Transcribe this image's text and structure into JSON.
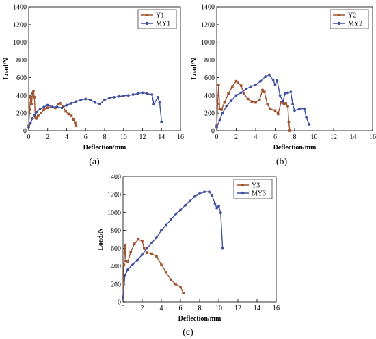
{
  "chart_data": [
    {
      "type": "line",
      "panel_label": "(a)",
      "xlabel": "Deflection/mm",
      "ylabel": "Load/N",
      "xlim": [
        0,
        16
      ],
      "ylim": [
        0,
        1400
      ],
      "xticks": [
        0,
        2,
        4,
        6,
        8,
        10,
        12,
        14,
        16
      ],
      "yticks": [
        0,
        200,
        400,
        600,
        800,
        1000,
        1200,
        1400
      ],
      "legend_position": "top-right",
      "grid": false,
      "series": [
        {
          "name": "Y1",
          "color": "#a0522d",
          "marker": "square",
          "x": [
            0,
            0.1,
            0.2,
            0.3,
            0.4,
            0.5,
            0.6,
            0.7,
            0.8,
            1.0,
            1.3,
            1.6,
            2.0,
            2.4,
            2.8,
            3.1,
            3.3,
            3.6,
            3.9,
            4.2,
            4.5,
            4.7,
            4.9,
            5.0
          ],
          "y": [
            60,
            240,
            380,
            300,
            420,
            450,
            380,
            150,
            140,
            170,
            200,
            240,
            260,
            270,
            260,
            300,
            310,
            280,
            220,
            190,
            170,
            130,
            90,
            60
          ]
        },
        {
          "name": "MY1",
          "color": "#3f4f9f",
          "marker": "circle",
          "x": [
            0,
            0.2,
            0.4,
            0.6,
            0.8,
            1.2,
            1.6,
            2.0,
            2.5,
            3.0,
            3.5,
            4.0,
            4.5,
            5.0,
            5.5,
            6.0,
            6.5,
            7.0,
            7.5,
            8.0,
            8.5,
            9.0,
            9.5,
            10.0,
            10.5,
            11.0,
            11.5,
            12.0,
            12.5,
            13.0,
            13.2,
            13.6,
            13.8,
            14.0
          ],
          "y": [
            40,
            90,
            140,
            180,
            210,
            250,
            270,
            290,
            270,
            270,
            260,
            290,
            310,
            330,
            350,
            360,
            350,
            320,
            300,
            350,
            370,
            380,
            390,
            395,
            400,
            410,
            420,
            430,
            420,
            410,
            300,
            380,
            320,
            100
          ]
        }
      ]
    },
    {
      "type": "line",
      "panel_label": "(b)",
      "xlabel": "Deflection/mm",
      "ylabel": "Load/N",
      "xlim": [
        0,
        16
      ],
      "ylim": [
        0,
        1400
      ],
      "xticks": [
        0,
        2,
        4,
        6,
        8,
        10,
        12,
        14,
        16
      ],
      "yticks": [
        0,
        200,
        400,
        600,
        800,
        1000,
        1200,
        1400
      ],
      "legend_position": "top-right",
      "grid": false,
      "series": [
        {
          "name": "Y2",
          "color": "#a0522d",
          "marker": "square",
          "x": [
            0,
            0.1,
            0.2,
            0.3,
            0.5,
            0.8,
            1.2,
            1.6,
            2.0,
            2.2,
            2.5,
            2.8,
            3.2,
            3.6,
            4.0,
            4.4,
            4.7,
            4.9,
            5.2,
            5.5,
            6.0,
            6.3,
            6.6,
            6.9,
            7.1,
            7.3,
            7.4,
            7.5
          ],
          "y": [
            60,
            300,
            520,
            250,
            240,
            320,
            420,
            500,
            560,
            540,
            510,
            420,
            360,
            330,
            320,
            350,
            460,
            440,
            300,
            250,
            230,
            190,
            320,
            300,
            310,
            280,
            100,
            0
          ]
        },
        {
          "name": "MY2",
          "color": "#3f4f9f",
          "marker": "circle",
          "x": [
            0,
            0.3,
            0.6,
            1.0,
            1.5,
            2.0,
            2.5,
            3.0,
            3.5,
            4.0,
            4.5,
            5.0,
            5.4,
            5.8,
            6.0,
            6.2,
            6.5,
            6.8,
            7.0,
            7.3,
            7.6,
            7.8,
            8.0,
            8.5,
            9.0,
            9.2,
            9.5
          ],
          "y": [
            40,
            120,
            200,
            280,
            340,
            400,
            430,
            470,
            500,
            520,
            560,
            610,
            630,
            570,
            520,
            570,
            400,
            330,
            420,
            430,
            440,
            300,
            230,
            250,
            250,
            150,
            70
          ]
        }
      ]
    },
    {
      "type": "line",
      "panel_label": "(c)",
      "xlabel": "Deflection/mm",
      "ylabel": "Load/N",
      "xlim": [
        0,
        16
      ],
      "ylim": [
        0,
        1400
      ],
      "xticks": [
        0,
        2,
        4,
        6,
        8,
        10,
        12,
        14,
        16
      ],
      "yticks": [
        0,
        200,
        400,
        600,
        800,
        1000,
        1200,
        1400
      ],
      "legend_position": "top-right",
      "grid": false,
      "series": [
        {
          "name": "Y3",
          "color": "#a0522d",
          "marker": "square",
          "x": [
            0,
            0.1,
            0.2,
            0.3,
            0.5,
            0.8,
            1.2,
            1.6,
            2.0,
            2.2,
            2.5,
            3.0,
            3.5,
            4.0,
            4.5,
            5.0,
            5.5,
            6.0,
            6.3
          ],
          "y": [
            60,
            420,
            630,
            460,
            450,
            560,
            650,
            700,
            680,
            600,
            550,
            540,
            510,
            420,
            330,
            250,
            200,
            170,
            100
          ]
        },
        {
          "name": "MY3",
          "color": "#3f4f9f",
          "marker": "circle",
          "x": [
            0,
            0.2,
            0.5,
            1.0,
            1.5,
            2.0,
            2.5,
            3.0,
            3.5,
            4.0,
            4.5,
            5.0,
            5.5,
            6.0,
            6.5,
            7.0,
            7.5,
            8.0,
            8.5,
            9.0,
            9.3,
            9.6,
            9.8,
            10.0,
            10.2,
            10.4
          ],
          "y": [
            40,
            300,
            360,
            420,
            470,
            530,
            600,
            660,
            720,
            800,
            860,
            920,
            980,
            1030,
            1080,
            1130,
            1180,
            1210,
            1230,
            1230,
            1190,
            1100,
            1050,
            1070,
            1000,
            600
          ]
        }
      ]
    }
  ]
}
